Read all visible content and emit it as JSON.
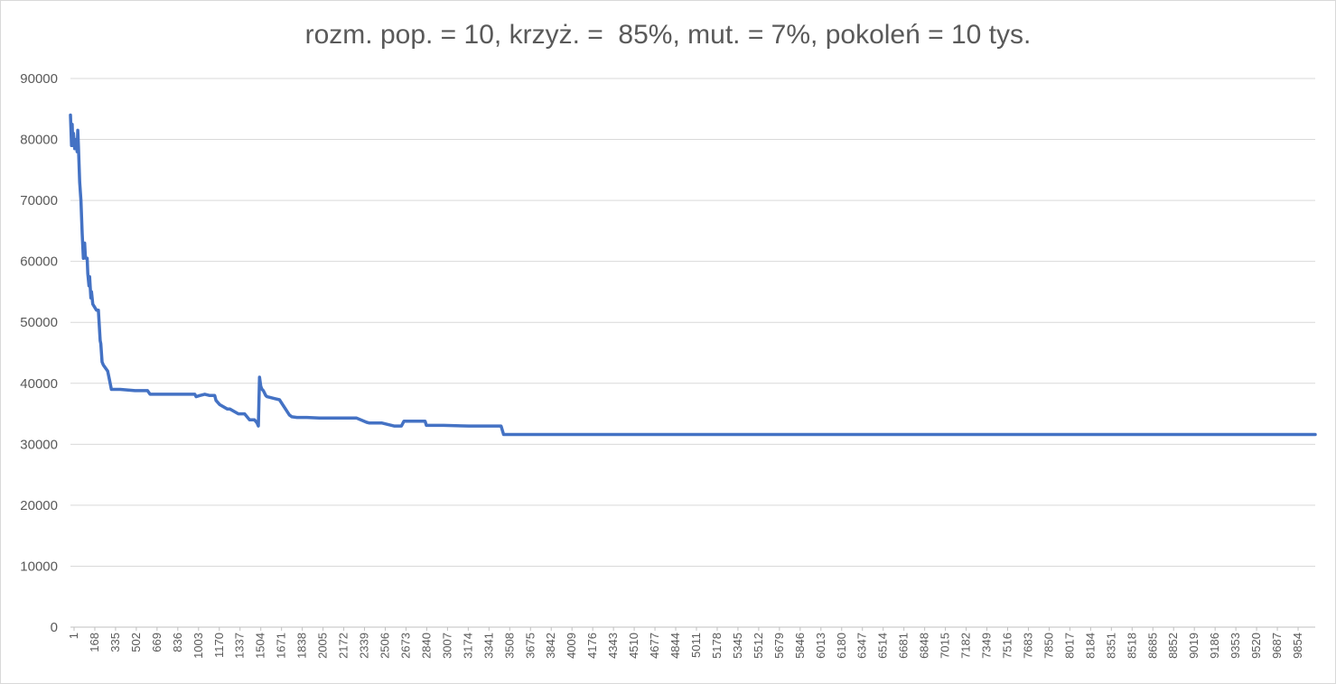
{
  "chart_data": {
    "type": "line",
    "title": "rozm. pop. = 10, krzyż. =  85%, mut. = 7%, pokoleń = 10 tys.",
    "xlabel": "",
    "ylabel": "",
    "xlim": [
      1,
      10000
    ],
    "ylim": [
      0,
      90000
    ],
    "grid": true,
    "y_ticks": [
      "0",
      "10000",
      "20000",
      "30000",
      "40000",
      "50000",
      "60000",
      "70000",
      "80000",
      "90000"
    ],
    "x_ticks": [
      "1",
      "168",
      "335",
      "502",
      "669",
      "836",
      "1003",
      "1170",
      "1337",
      "1504",
      "1671",
      "1838",
      "2005",
      "2172",
      "2339",
      "2506",
      "2673",
      "2840",
      "3007",
      "3174",
      "3341",
      "3508",
      "3675",
      "3842",
      "4009",
      "4176",
      "4343",
      "4510",
      "4677",
      "4844",
      "5011",
      "5178",
      "5345",
      "5512",
      "5679",
      "5846",
      "6013",
      "6180",
      "6347",
      "6514",
      "6681",
      "6848",
      "7015",
      "7182",
      "7349",
      "7516",
      "7683",
      "7850",
      "8017",
      "8184",
      "8351",
      "8518",
      "8685",
      "8852",
      "9019",
      "9186",
      "9353",
      "9520",
      "9687",
      "9854"
    ],
    "series": [
      {
        "color": "#4472c4",
        "x": [
          1,
          10,
          15,
          20,
          25,
          35,
          45,
          55,
          60,
          65,
          75,
          85,
          95,
          105,
          115,
          120,
          125,
          135,
          140,
          150,
          155,
          165,
          170,
          180,
          195,
          210,
          225,
          240,
          245,
          255,
          265,
          300,
          310,
          330,
          340,
          400,
          520,
          560,
          620,
          640,
          1000,
          1010,
          1040,
          1080,
          1120,
          1160,
          1170,
          1200,
          1260,
          1280,
          1350,
          1400,
          1440,
          1480,
          1500,
          1510,
          1520,
          1530,
          1540,
          1550,
          1570,
          1580,
          1640,
          1680,
          1760,
          1780,
          1820,
          1860,
          1900,
          2000,
          2160,
          2300,
          2380,
          2400,
          2500,
          2600,
          2660,
          2680,
          2850,
          2860,
          3000,
          3200,
          3460,
          3480,
          10000
        ],
        "y": [
          84000,
          79000,
          82500,
          79000,
          81000,
          78500,
          80000,
          78000,
          81500,
          79000,
          73000,
          70000,
          64500,
          60500,
          63000,
          61000,
          60500,
          60500,
          58000,
          56000,
          57500,
          54000,
          55000,
          53000,
          52500,
          52000,
          52000,
          47000,
          46500,
          43500,
          43000,
          42000,
          41000,
          39000,
          39000,
          39000,
          38800,
          38800,
          38800,
          38200,
          38200,
          37800,
          38000,
          38200,
          38000,
          38000,
          37200,
          36500,
          35800,
          35800,
          35000,
          35000,
          34000,
          34000,
          33500,
          33000,
          41000,
          39500,
          39000,
          38800,
          38000,
          37800,
          37500,
          37300,
          34800,
          34500,
          34400,
          34400,
          34400,
          34300,
          34300,
          34300,
          33600,
          33500,
          33500,
          33000,
          33000,
          33800,
          33800,
          33100,
          33100,
          33000,
          33000,
          31600,
          31600
        ]
      }
    ]
  }
}
